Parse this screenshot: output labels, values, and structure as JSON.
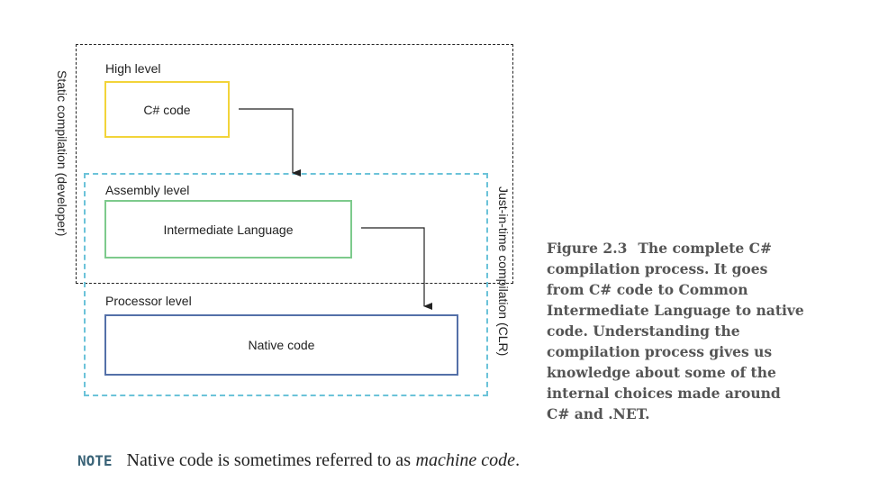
{
  "diagram": {
    "regions": {
      "static": {
        "label": "Static compilation (developer)"
      },
      "jit": {
        "label": "Just-in-time compilation (CLR)"
      }
    },
    "levels": {
      "high": {
        "label": "High level",
        "box": "C# code"
      },
      "assembly": {
        "label": "Assembly level",
        "box": "Intermediate Language"
      },
      "processor": {
        "label": "Processor level",
        "box": "Native code"
      }
    },
    "colors": {
      "csharp_border": "#f2d43a",
      "il_border": "#7dca8c",
      "native_border": "#5470a8",
      "jit_dash": "#6cc3d9",
      "static_dash": "#222222"
    }
  },
  "caption": {
    "figure": "Figure 2.3",
    "text": "The complete C# compilation process. It goes from C# code to Common Intermediate Language to native code. Understanding the compilation process gives us knowledge about some of the internal choices made around C# and .NET."
  },
  "note": {
    "tag": "NOTE",
    "text": "Native code is sometimes referred to as",
    "emphasis": "machine code",
    "end": "."
  }
}
